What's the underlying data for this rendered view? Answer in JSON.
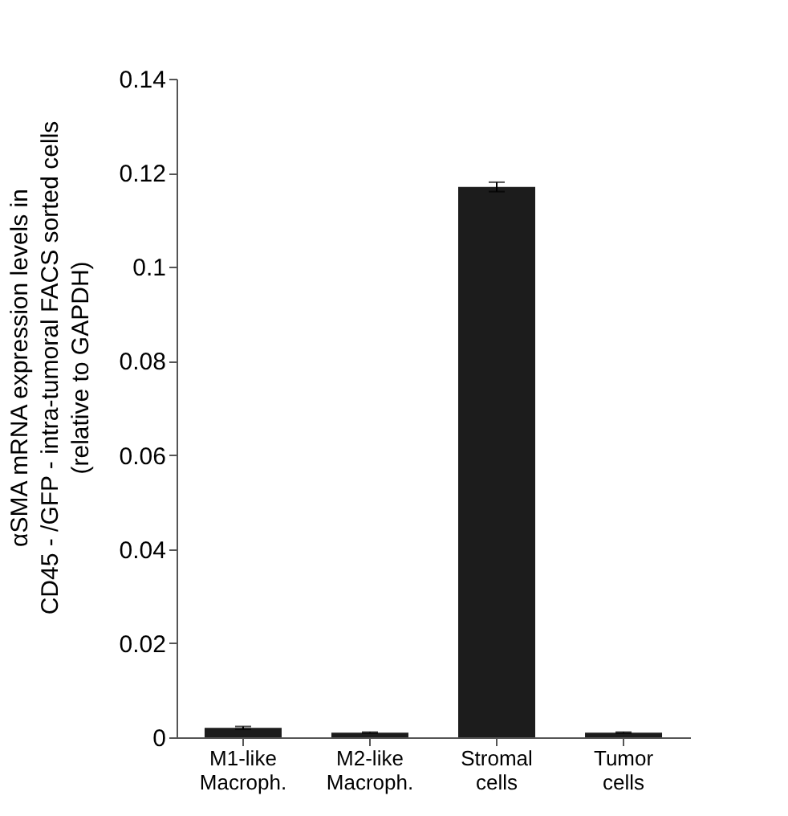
{
  "chart_data": {
    "type": "bar",
    "ylabel": "αSMA mRNA expression levels in\nCD45 - /GFP - intra-tumoral FACS sorted cells\n(relative to GAPDH)",
    "categories": [
      "M1-like\nMacroph.",
      "M2-like\nMacroph.",
      "Stromal\ncells",
      "Tumor\ncells"
    ],
    "values": [
      0.002,
      0.001,
      0.117,
      0.001
    ],
    "errors": [
      0.0003,
      0.0001,
      0.001,
      0.0001
    ],
    "color": "#1c1c1c",
    "ylim": [
      0,
      0.14
    ],
    "yticks": [
      0,
      0.02,
      0.04,
      0.06,
      0.08,
      0.1,
      0.12,
      0.14
    ],
    "grid": false
  }
}
